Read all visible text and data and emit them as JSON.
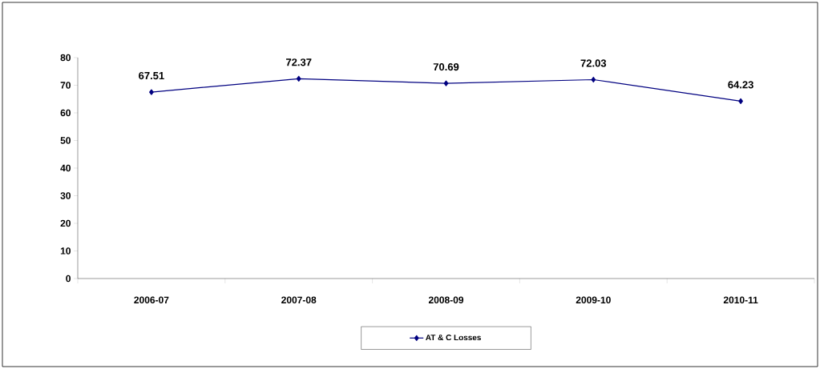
{
  "chart_data": {
    "type": "line",
    "categories": [
      "2006-07",
      "2007-08",
      "2008-09",
      "2009-10",
      "2010-11"
    ],
    "series": [
      {
        "name": "AT & C Losses",
        "color": "#000080",
        "values": [
          67.51,
          72.37,
          70.69,
          72.03,
          64.23
        ]
      }
    ],
    "ylim": [
      0,
      80
    ],
    "yticks": [
      0,
      10,
      20,
      30,
      40,
      50,
      60,
      70,
      80
    ],
    "data_labels": true,
    "marker": "diamond",
    "legend": "bottom",
    "grid": false
  }
}
